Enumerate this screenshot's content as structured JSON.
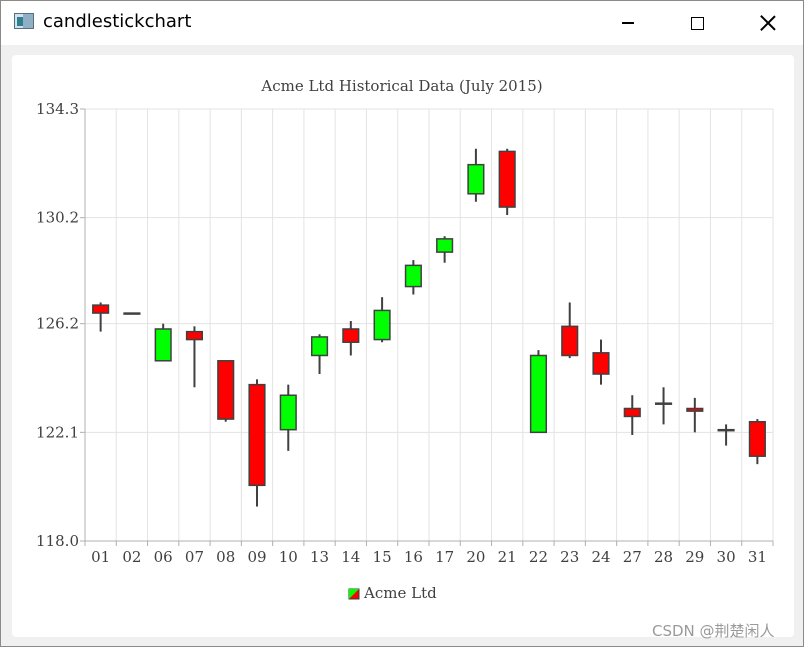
{
  "window": {
    "title": "candlestickchart",
    "icon": "app-window-icon",
    "controls": [
      "minimize-icon",
      "maximize-icon",
      "close-icon"
    ]
  },
  "watermark": "CSDN @荆楚闲人",
  "chart_data": {
    "type": "candlestick",
    "title": "Acme Ltd Historical Data (July 2015)",
    "xlabel": "",
    "ylabel": "",
    "ylim": [
      118.0,
      134.3
    ],
    "yticks": [
      "134.3",
      "130.2",
      "126.2",
      "122.1",
      "118.0"
    ],
    "categories": [
      "01",
      "02",
      "06",
      "07",
      "08",
      "09",
      "10",
      "13",
      "14",
      "15",
      "16",
      "17",
      "20",
      "21",
      "22",
      "23",
      "24",
      "27",
      "28",
      "29",
      "30",
      "31"
    ],
    "series": [
      {
        "name": "Acme Ltd",
        "increasing_color": "#00ff00",
        "decreasing_color": "#ff0000",
        "points": [
          {
            "x": "01",
            "open": 126.9,
            "high": 127.0,
            "low": 125.9,
            "close": 126.6
          },
          {
            "x": "02",
            "open": 126.6,
            "high": 126.6,
            "low": 126.6,
            "close": 126.6
          },
          {
            "x": "06",
            "open": 124.8,
            "high": 126.2,
            "low": 124.8,
            "close": 126.0
          },
          {
            "x": "07",
            "open": 125.9,
            "high": 126.1,
            "low": 123.8,
            "close": 125.6
          },
          {
            "x": "08",
            "open": 124.8,
            "high": 124.8,
            "low": 122.5,
            "close": 122.6
          },
          {
            "x": "09",
            "open": 123.9,
            "high": 124.1,
            "low": 119.3,
            "close": 120.1
          },
          {
            "x": "10",
            "open": 122.2,
            "high": 123.9,
            "low": 121.4,
            "close": 123.5
          },
          {
            "x": "13",
            "open": 125.0,
            "high": 125.8,
            "low": 124.3,
            "close": 125.7
          },
          {
            "x": "14",
            "open": 126.0,
            "high": 126.3,
            "low": 125.0,
            "close": 125.5
          },
          {
            "x": "15",
            "open": 125.6,
            "high": 127.2,
            "low": 125.5,
            "close": 126.7
          },
          {
            "x": "16",
            "open": 127.6,
            "high": 128.6,
            "low": 127.3,
            "close": 128.4
          },
          {
            "x": "17",
            "open": 128.9,
            "high": 129.5,
            "low": 128.5,
            "close": 129.4
          },
          {
            "x": "20",
            "open": 131.1,
            "high": 132.8,
            "low": 130.8,
            "close": 132.2
          },
          {
            "x": "21",
            "open": 132.7,
            "high": 132.8,
            "low": 130.3,
            "close": 130.6
          },
          {
            "x": "22",
            "open": 122.1,
            "high": 125.2,
            "low": 122.1,
            "close": 125.0
          },
          {
            "x": "23",
            "open": 126.1,
            "high": 127.0,
            "low": 124.9,
            "close": 125.0
          },
          {
            "x": "24",
            "open": 125.1,
            "high": 125.6,
            "low": 123.9,
            "close": 124.3
          },
          {
            "x": "27",
            "open": 123.0,
            "high": 123.5,
            "low": 122.0,
            "close": 122.7
          },
          {
            "x": "28",
            "open": 123.2,
            "high": 123.8,
            "low": 122.4,
            "close": 123.2
          },
          {
            "x": "29",
            "open": 123.0,
            "high": 123.4,
            "low": 122.1,
            "close": 122.9
          },
          {
            "x": "30",
            "open": 122.2,
            "high": 122.4,
            "low": 121.6,
            "close": 122.2
          },
          {
            "x": "31",
            "open": 122.5,
            "high": 122.6,
            "low": 120.9,
            "close": 121.2
          }
        ]
      }
    ],
    "grid": true,
    "legend": "bottom-center"
  }
}
